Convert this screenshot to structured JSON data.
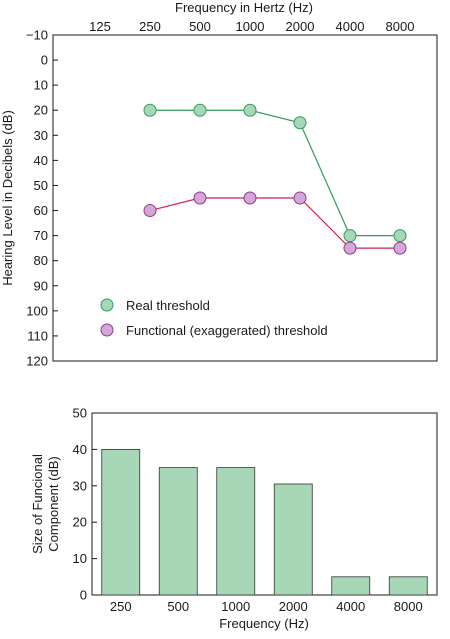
{
  "chart_data": [
    {
      "type": "line",
      "title": "",
      "xlabel": "Frequency in Hertz (Hz)",
      "ylabel": "Hearing Level in Decibels (dB)",
      "x_tick_labels": [
        "125",
        "250",
        "500",
        "1000",
        "2000",
        "4000",
        "8000"
      ],
      "y_tick_labels": [
        "−10",
        "0",
        "10",
        "20",
        "30",
        "40",
        "50",
        "60",
        "70",
        "80",
        "90",
        "100",
        "110",
        "120"
      ],
      "y_ticks": [
        -10,
        0,
        10,
        20,
        30,
        40,
        50,
        60,
        70,
        80,
        90,
        100,
        110,
        120
      ],
      "ylim": [
        -10,
        120
      ],
      "y_inverted": true,
      "x_axis_position": "top",
      "x_scale": "log2",
      "legend_position": "bottom-left",
      "grid": false,
      "series": [
        {
          "name": "Real threshold",
          "color": "#2e9e58",
          "marker_fill": "#a7d7b6",
          "x": [
            250,
            500,
            1000,
            2000,
            4000,
            8000
          ],
          "values": [
            20,
            20,
            20,
            25,
            70,
            70
          ]
        },
        {
          "name": "Functional (exaggerated) threshold",
          "color": "#d0234a",
          "marker_fill": "#d6a6d8",
          "x": [
            250,
            500,
            1000,
            2000,
            4000,
            8000
          ],
          "values": [
            60,
            55,
            55,
            55,
            75,
            75
          ]
        }
      ]
    },
    {
      "type": "bar",
      "title": "",
      "xlabel": "Frequency (Hz)",
      "ylabel_line1": "Size of Funcional",
      "ylabel_line2": "Component (dB)",
      "categories": [
        "250",
        "500",
        "1000",
        "2000",
        "4000",
        "8000"
      ],
      "values": [
        40,
        35,
        35,
        30.5,
        5,
        5
      ],
      "y_tick_labels": [
        "0",
        "10",
        "20",
        "30",
        "40",
        "50"
      ],
      "y_ticks": [
        0,
        10,
        20,
        30,
        40,
        50
      ],
      "ylim": [
        0,
        50
      ],
      "bar_color": "#a7d7b6",
      "bar_edge": "#333333",
      "grid": false
    }
  ]
}
